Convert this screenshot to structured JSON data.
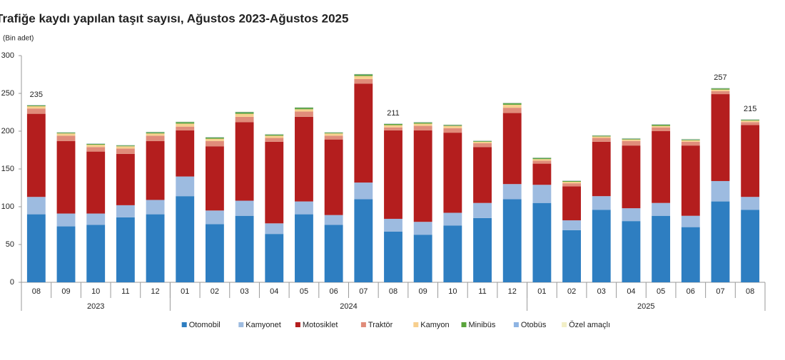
{
  "chart_data": {
    "type": "stacked_bar",
    "title": "Trafiğe kaydı yapılan taşıt sayısı, Ağustos 2023-Ağustos 2025",
    "y_label": "(Bin adet)",
    "categories": [
      "08",
      "09",
      "10",
      "11",
      "12",
      "01",
      "02",
      "03",
      "04",
      "05",
      "06",
      "07",
      "08",
      "09",
      "10",
      "11",
      "12",
      "01",
      "02",
      "03",
      "04",
      "05",
      "06",
      "07",
      "08"
    ],
    "years": [
      "2023",
      "2023",
      "2023",
      "2023",
      "2023",
      "2024",
      "2024",
      "2024",
      "2024",
      "2024",
      "2024",
      "2024",
      "2024",
      "2024",
      "2024",
      "2024",
      "2024",
      "2025",
      "2025",
      "2025",
      "2025",
      "2025",
      "2025",
      "2025",
      "2025"
    ],
    "ylim": [
      0,
      300
    ],
    "yticks": [
      0,
      50,
      100,
      150,
      200,
      250,
      300
    ],
    "grid": false,
    "total_labels": [
      235,
      null,
      null,
      null,
      null,
      null,
      null,
      null,
      null,
      null,
      null,
      null,
      211,
      null,
      null,
      null,
      null,
      null,
      null,
      null,
      null,
      null,
      null,
      257,
      215
    ],
    "series": [
      {
        "name": "Otomobil",
        "color": "#2e7ec1",
        "values": [
          90,
          74,
          76,
          86,
          90,
          114,
          77,
          88,
          64,
          90,
          76,
          110,
          67,
          63,
          75,
          85,
          110,
          105,
          69,
          96,
          81,
          88,
          73,
          107,
          96
        ]
      },
      {
        "name": "Kamyonet",
        "color": "#9dbbe0",
        "values": [
          23,
          17,
          15,
          16,
          19,
          26,
          18,
          20,
          14,
          17,
          13,
          22,
          17,
          17,
          17,
          20,
          20,
          24,
          13,
          18,
          17,
          17,
          15,
          27,
          17
        ]
      },
      {
        "name": "Motosiklet",
        "color": "#b41e1e",
        "values": [
          110,
          96,
          82,
          68,
          78,
          61,
          85,
          104,
          108,
          112,
          100,
          131,
          117,
          121,
          106,
          74,
          94,
          28,
          45,
          72,
          83,
          95,
          93,
          115,
          95
        ]
      },
      {
        "name": "Traktör",
        "color": "#e08c7a",
        "values": [
          7,
          7,
          6,
          7,
          7,
          5,
          7,
          7,
          5,
          7,
          5,
          6,
          4,
          6,
          6,
          5,
          7,
          4,
          4,
          5,
          6,
          5,
          5,
          4,
          4
        ]
      },
      {
        "name": "Kamyon",
        "color": "#f7cf8e",
        "values": [
          3,
          3,
          3,
          3,
          3,
          4,
          3,
          4,
          3,
          3,
          3,
          4,
          3,
          3,
          3,
          2,
          4,
          2,
          2,
          2,
          2,
          2,
          2,
          2,
          2
        ]
      },
      {
        "name": "Minibüs",
        "color": "#5aa43c",
        "values": [
          1,
          1,
          1,
          1,
          1.5,
          2,
          1.5,
          2,
          1.5,
          2,
          1,
          2,
          1.5,
          1.5,
          1,
          1,
          2,
          1.5,
          1,
          1,
          1,
          1.5,
          1,
          1.5,
          1
        ]
      },
      {
        "name": "Otobüs",
        "color": "#8eb4e3",
        "values": [
          0.5,
          0.5,
          0.5,
          0.5,
          0.5,
          0.5,
          0.5,
          0.5,
          0.5,
          0.5,
          0.5,
          0.5,
          0.5,
          0.5,
          0.5,
          0.5,
          0.5,
          0.5,
          0.5,
          0.5,
          0.5,
          0.5,
          0.5,
          0.5,
          0.5
        ]
      },
      {
        "name": "Özel amaçlı",
        "color": "#f2efc6",
        "values": [
          0.5,
          0.5,
          0.5,
          0.5,
          0.5,
          0.5,
          0.5,
          0.5,
          0.5,
          0.5,
          0.5,
          0.5,
          0.5,
          0.5,
          0.5,
          0.5,
          0.5,
          0.5,
          0.5,
          0.5,
          0.5,
          0.5,
          0.5,
          0.5,
          0.5
        ]
      }
    ]
  }
}
